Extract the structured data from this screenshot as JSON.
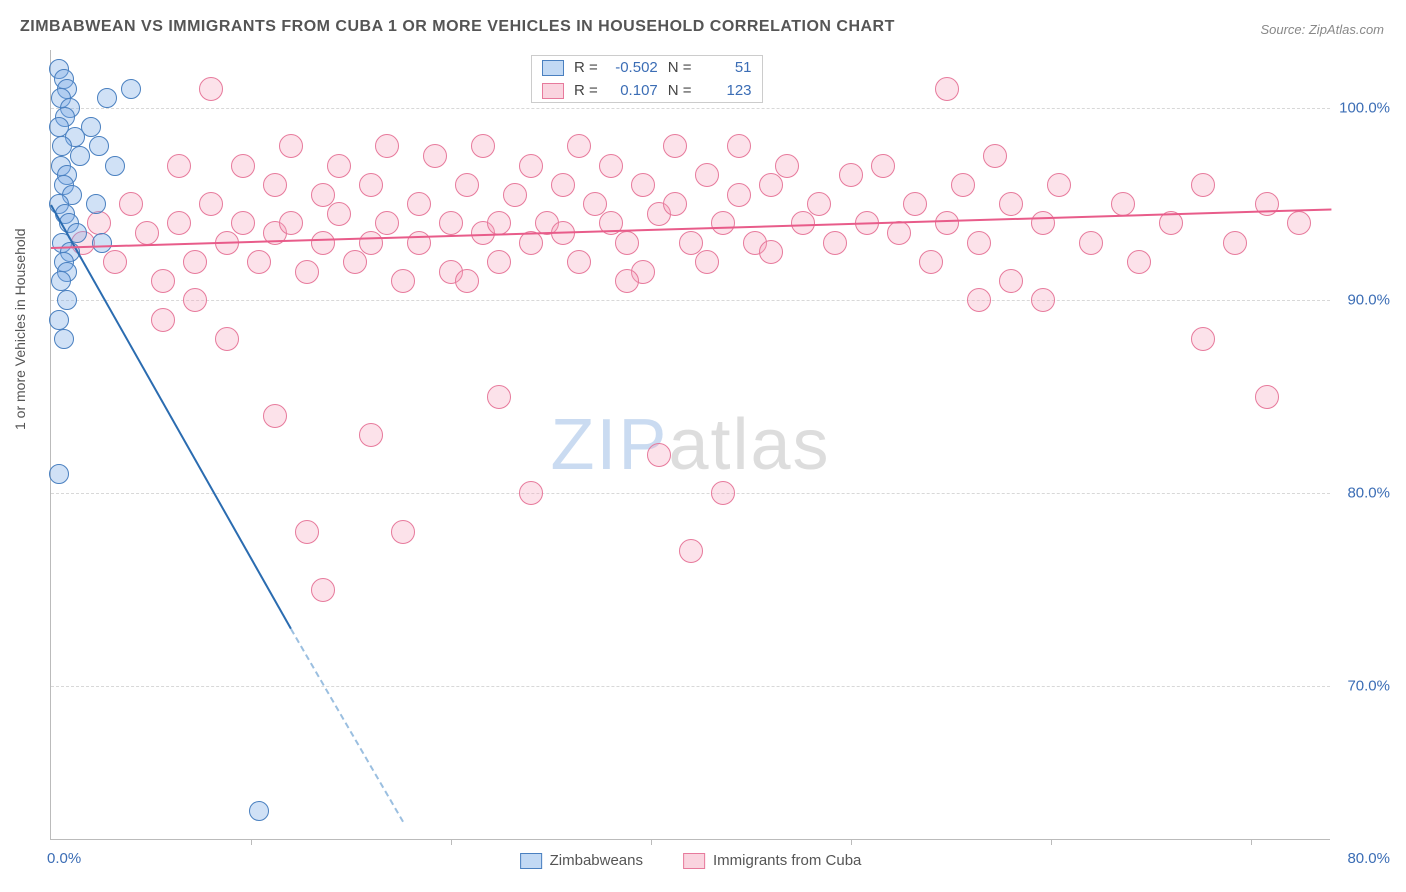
{
  "title": "ZIMBABWEAN VS IMMIGRANTS FROM CUBA 1 OR MORE VEHICLES IN HOUSEHOLD CORRELATION CHART",
  "source": "Source: ZipAtlas.com",
  "y_axis_title": "1 or more Vehicles in Household",
  "watermark_zip": "ZIP",
  "watermark_atlas": "atlas",
  "chart": {
    "type": "scatter",
    "xlim": [
      0,
      80
    ],
    "ylim": [
      62,
      103
    ],
    "x_ticks": [
      0,
      80
    ],
    "x_tick_labels": [
      "0.0%",
      "80.0%"
    ],
    "x_tick_mid_positions": [
      12.5,
      25,
      37.5,
      50,
      62.5,
      75
    ],
    "y_ticks": [
      70,
      80,
      90,
      100
    ],
    "y_tick_labels": [
      "70.0%",
      "80.0%",
      "90.0%",
      "100.0%"
    ],
    "grid_color": "#d8d8d8",
    "background_color": "#ffffff",
    "axis_color": "#bbb",
    "tick_label_color": "#3b6db5",
    "marker_radius_blue": 10,
    "marker_radius_pink": 12,
    "series": {
      "blue": {
        "label": "Zimbabweans",
        "color_fill": "rgba(120,170,230,0.35)",
        "color_stroke": "#4a80c0",
        "R": "-0.502",
        "N": "51",
        "trend": {
          "x1": 0,
          "y1": 95,
          "x2": 15,
          "y2": 73,
          "x2_ext": 22,
          "y2_ext": 63
        },
        "points": [
          [
            0.5,
            102
          ],
          [
            0.8,
            101.5
          ],
          [
            1.0,
            101
          ],
          [
            0.6,
            100.5
          ],
          [
            1.2,
            100
          ],
          [
            0.9,
            99.5
          ],
          [
            0.5,
            99
          ],
          [
            1.5,
            98.5
          ],
          [
            0.7,
            98
          ],
          [
            1.8,
            97.5
          ],
          [
            0.6,
            97
          ],
          [
            1.0,
            96.5
          ],
          [
            0.8,
            96
          ],
          [
            1.3,
            95.5
          ],
          [
            0.5,
            95
          ],
          [
            0.9,
            94.5
          ],
          [
            1.1,
            94
          ],
          [
            1.6,
            93.5
          ],
          [
            0.7,
            93
          ],
          [
            1.2,
            92.5
          ],
          [
            0.8,
            92
          ],
          [
            1.0,
            91.5
          ],
          [
            0.6,
            91
          ],
          [
            5,
            101
          ],
          [
            3.5,
            100.5
          ],
          [
            2.5,
            99
          ],
          [
            3,
            98
          ],
          [
            4,
            97
          ],
          [
            2.8,
            95
          ],
          [
            3.2,
            93
          ],
          [
            0.5,
            89
          ],
          [
            1.0,
            90
          ],
          [
            0.8,
            88
          ],
          [
            0.5,
            81
          ],
          [
            13,
            63.5
          ]
        ]
      },
      "pink": {
        "label": "Immigrants from Cuba",
        "color_fill": "rgba(245,160,185,0.3)",
        "color_stroke": "#e77a9c",
        "R": "0.107",
        "N": "123",
        "trend": {
          "x1": 0,
          "y1": 92.8,
          "x2": 80,
          "y2": 94.8
        },
        "points": [
          [
            2,
            93
          ],
          [
            3,
            94
          ],
          [
            4,
            92
          ],
          [
            5,
            95
          ],
          [
            6,
            93.5
          ],
          [
            7,
            91
          ],
          [
            8,
            94
          ],
          [
            8,
            97
          ],
          [
            9,
            92
          ],
          [
            10,
            101
          ],
          [
            10,
            95
          ],
          [
            11,
            93
          ],
          [
            12,
            97
          ],
          [
            12,
            94
          ],
          [
            13,
            92
          ],
          [
            14,
            96
          ],
          [
            14,
            93.5
          ],
          [
            15,
            98
          ],
          [
            15,
            94
          ],
          [
            16,
            91.5
          ],
          [
            17,
            95.5
          ],
          [
            17,
            93
          ],
          [
            18,
            97
          ],
          [
            18,
            94.5
          ],
          [
            19,
            92
          ],
          [
            20,
            96
          ],
          [
            20,
            93
          ],
          [
            21,
            98
          ],
          [
            21,
            94
          ],
          [
            22,
            91
          ],
          [
            23,
            95
          ],
          [
            23,
            93
          ],
          [
            24,
            97.5
          ],
          [
            25,
            94
          ],
          [
            25,
            91.5
          ],
          [
            26,
            96
          ],
          [
            27,
            93.5
          ],
          [
            27,
            98
          ],
          [
            28,
            94
          ],
          [
            28,
            92
          ],
          [
            29,
            95.5
          ],
          [
            30,
            93
          ],
          [
            30,
            97
          ],
          [
            31,
            94
          ],
          [
            32,
            96
          ],
          [
            32,
            93.5
          ],
          [
            33,
            98
          ],
          [
            33,
            92
          ],
          [
            34,
            95
          ],
          [
            35,
            94
          ],
          [
            35,
            97
          ],
          [
            36,
            93
          ],
          [
            37,
            96
          ],
          [
            37,
            91.5
          ],
          [
            38,
            94.5
          ],
          [
            39,
            95
          ],
          [
            39,
            98
          ],
          [
            40,
            93
          ],
          [
            41,
            96.5
          ],
          [
            41,
            92
          ],
          [
            42,
            94
          ],
          [
            43,
            95.5
          ],
          [
            43,
            98
          ],
          [
            44,
            93
          ],
          [
            45,
            96
          ],
          [
            45,
            92.5
          ],
          [
            46,
            97
          ],
          [
            47,
            94
          ],
          [
            48,
            95
          ],
          [
            49,
            93
          ],
          [
            50,
            96.5
          ],
          [
            51,
            94
          ],
          [
            52,
            97
          ],
          [
            53,
            93.5
          ],
          [
            54,
            95
          ],
          [
            55,
            92
          ],
          [
            56,
            101
          ],
          [
            56,
            94
          ],
          [
            57,
            96
          ],
          [
            58,
            93
          ],
          [
            59,
            97.5
          ],
          [
            60,
            95
          ],
          [
            60,
            91
          ],
          [
            62,
            94
          ],
          [
            63,
            96
          ],
          [
            65,
            93
          ],
          [
            67,
            95
          ],
          [
            68,
            92
          ],
          [
            70,
            94
          ],
          [
            72,
            96
          ],
          [
            72,
            88
          ],
          [
            74,
            93
          ],
          [
            76,
            85
          ],
          [
            76,
            95
          ],
          [
            78,
            94
          ],
          [
            14,
            84
          ],
          [
            16,
            78
          ],
          [
            17,
            75
          ],
          [
            20,
            83
          ],
          [
            22,
            78
          ],
          [
            26,
            91
          ],
          [
            28,
            85
          ],
          [
            30,
            80
          ],
          [
            36,
            91
          ],
          [
            38,
            82
          ],
          [
            40,
            77
          ],
          [
            42,
            80
          ],
          [
            58,
            90
          ],
          [
            62,
            90
          ],
          [
            7,
            89
          ],
          [
            9,
            90
          ],
          [
            11,
            88
          ]
        ]
      }
    }
  },
  "corr_box": {
    "R_label": "R =",
    "N_label": "N ="
  }
}
